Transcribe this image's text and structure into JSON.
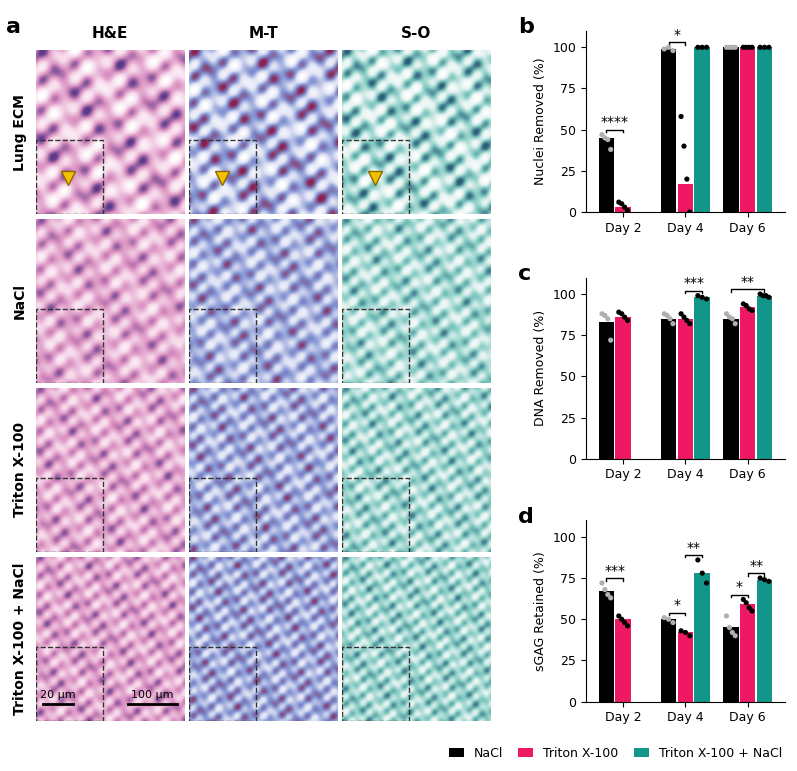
{
  "image_panel": {
    "title": "a",
    "columns": [
      "H&E",
      "M-T",
      "S-O"
    ],
    "rows": [
      "Lung ECM",
      "NaCl",
      "Triton X-100",
      "Triton X-100 + NaCl"
    ],
    "scale_bars": [
      "20 µm",
      "100 µm"
    ]
  },
  "chart_data": [
    {
      "type": "bar",
      "title": "b",
      "y_label": "Nuclei Removed (%)",
      "categories": [
        "Day 2",
        "Day 4",
        "Day 6"
      ],
      "ylim": [
        0,
        110
      ],
      "yticks": [
        0,
        25,
        50,
        75,
        100
      ],
      "series": [
        {
          "name": "NaCl",
          "color": "#000000",
          "values": [
            45,
            99,
            100
          ],
          "points": [
            [
              47,
              45,
              44,
              38
            ],
            [
              99,
              100,
              98
            ],
            [
              100,
              100,
              100,
              100
            ]
          ]
        },
        {
          "name": "Triton X-100",
          "color": "#ee1864",
          "values": [
            3,
            17,
            100
          ],
          "points": [
            [
              6,
              5,
              3,
              1
            ],
            [
              58,
              40,
              20,
              0
            ],
            [
              100,
              100,
              100,
              100
            ]
          ]
        },
        {
          "name": "Triton X-100 + NaCl",
          "color": "#13968a",
          "values": [
            null,
            100,
            100
          ],
          "points": [
            null,
            [
              100,
              100,
              100
            ],
            [
              100,
              100,
              100
            ]
          ]
        }
      ],
      "significance": [
        {
          "category": "Day 2",
          "from": "NaCl",
          "to": "Triton X-100",
          "label": "****"
        },
        {
          "category": "Day 4",
          "from": "NaCl",
          "to": "Triton X-100",
          "label": "*"
        }
      ]
    },
    {
      "type": "bar",
      "title": "c",
      "y_label": "DNA Removed (%)",
      "categories": [
        "Day 2",
        "Day 4",
        "Day 6"
      ],
      "ylim": [
        0,
        110
      ],
      "yticks": [
        0,
        25,
        50,
        75,
        100
      ],
      "series": [
        {
          "name": "NaCl",
          "color": "#000000",
          "values": [
            83,
            85,
            85
          ],
          "points": [
            [
              88,
              87,
              85,
              72
            ],
            [
              88,
              87,
              85,
              82
            ],
            [
              88,
              86,
              85,
              82
            ]
          ]
        },
        {
          "name": "Triton X-100",
          "color": "#ee1864",
          "values": [
            86,
            85,
            92
          ],
          "points": [
            [
              89,
              88,
              86,
              84
            ],
            [
              88,
              86,
              84,
              82
            ],
            [
              94,
              93,
              91,
              90
            ]
          ]
        },
        {
          "name": "Triton X-100 + NaCl",
          "color": "#13968a",
          "values": [
            null,
            98,
            99
          ],
          "points": [
            null,
            [
              99,
              98,
              97
            ],
            [
              100,
              99,
              99,
              98
            ]
          ]
        }
      ],
      "significance": [
        {
          "category": "Day 4",
          "from": "Triton X-100",
          "to": "Triton X-100 + NaCl",
          "label": "***"
        },
        {
          "category": "Day 6",
          "from": "NaCl",
          "to": "Triton X-100 + NaCl",
          "label": "**"
        }
      ]
    },
    {
      "type": "bar",
      "title": "d",
      "y_label": "sGAG Retained (%)",
      "categories": [
        "Day 2",
        "Day 4",
        "Day 6"
      ],
      "ylim": [
        0,
        110
      ],
      "yticks": [
        0,
        25,
        50,
        75,
        100
      ],
      "legend": "lower right",
      "series": [
        {
          "name": "NaCl",
          "color": "#000000",
          "values": [
            67,
            50,
            45
          ],
          "points": [
            [
              72,
              68,
              65,
              63
            ],
            [
              51,
              50,
              48
            ],
            [
              52,
              45,
              42,
              40
            ]
          ]
        },
        {
          "name": "Triton X-100",
          "color": "#ee1864",
          "values": [
            50,
            42,
            59
          ],
          "points": [
            [
              52,
              50,
              48,
              46
            ],
            [
              43,
              42,
              40
            ],
            [
              62,
              60,
              57,
              55
            ]
          ]
        },
        {
          "name": "Triton X-100 + NaCl",
          "color": "#13968a",
          "values": [
            null,
            78,
            74
          ],
          "points": [
            null,
            [
              86,
              78,
              72
            ],
            [
              75,
              74,
              73
            ]
          ]
        }
      ],
      "significance": [
        {
          "category": "Day 2",
          "from": "NaCl",
          "to": "Triton X-100",
          "label": "***"
        },
        {
          "category": "Day 4",
          "from": "NaCl",
          "to": "Triton X-100",
          "label": "*"
        },
        {
          "category": "Day 4",
          "from": "Triton X-100",
          "to": "Triton X-100 + NaCl",
          "label": "**"
        },
        {
          "category": "Day 6",
          "from": "NaCl",
          "to": "Triton X-100",
          "label": "*"
        },
        {
          "category": "Day 6",
          "from": "Triton X-100",
          "to": "Triton X-100 + NaCl",
          "label": "**"
        }
      ]
    }
  ]
}
